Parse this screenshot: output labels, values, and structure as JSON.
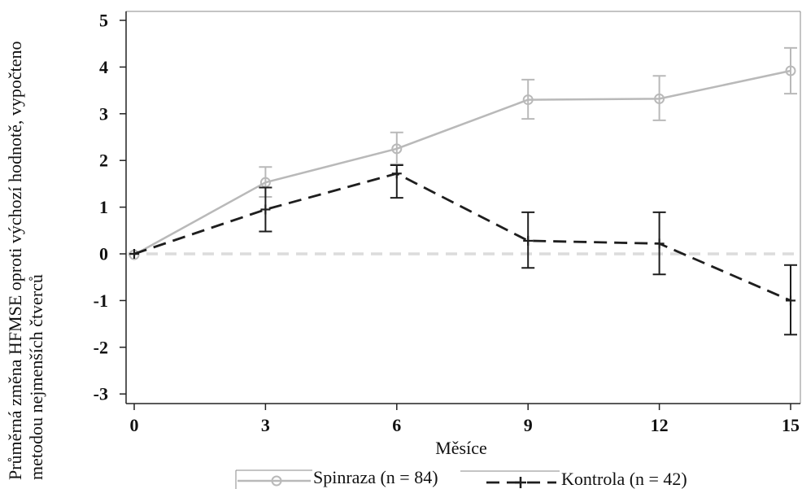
{
  "chart_data": {
    "type": "line",
    "x": [
      0,
      3,
      6,
      9,
      12,
      15
    ],
    "xticks": [
      0,
      3,
      6,
      9,
      12,
      15
    ],
    "yticks": [
      -3,
      -2,
      -1,
      0,
      1,
      2,
      3,
      4,
      5
    ],
    "xlim": [
      0,
      15
    ],
    "ylim": [
      -3,
      5
    ],
    "xlabel": "Měsíce",
    "ylabel": [
      "Průměrná změna HFMSE oproti výchozí hodnotě, vypočteno",
      "metodou nejmenších čtverců"
    ],
    "grid": false,
    "legend_position": "bottom",
    "reference_line": {
      "y": 0,
      "color": "#dcdcdc",
      "style": "dashed"
    },
    "series": [
      {
        "name": "Spinraza (n = 84)",
        "color": "#b9b9b9",
        "line_style": "solid",
        "marker": "circle",
        "values": [
          -0.02,
          1.53,
          2.25,
          3.3,
          3.32,
          3.92
        ],
        "error_lower": [
          null,
          1.22,
          1.92,
          2.89,
          2.86,
          3.43
        ],
        "error_upper": [
          null,
          1.86,
          2.6,
          3.73,
          3.81,
          4.41
        ]
      },
      {
        "name": "Kontrola (n = 42)",
        "color": "#1e1e1e",
        "line_style": "dashed",
        "marker": "plus",
        "values": [
          0.0,
          0.95,
          1.72,
          0.28,
          0.22,
          -1.0
        ],
        "error_lower": [
          null,
          0.48,
          1.2,
          -0.3,
          -0.44,
          -1.73
        ],
        "error_upper": [
          null,
          1.42,
          1.9,
          0.89,
          0.89,
          -0.24
        ]
      }
    ]
  }
}
